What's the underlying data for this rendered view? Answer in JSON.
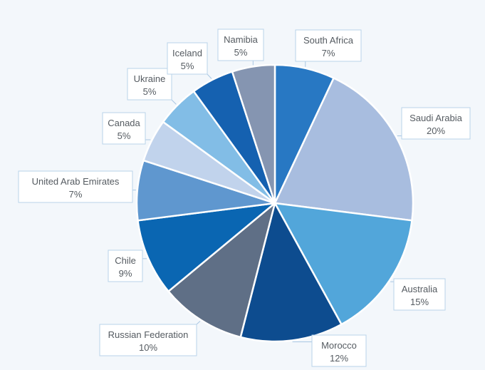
{
  "chart_data": {
    "type": "pie",
    "title": "",
    "slices": [
      {
        "label": "South Africa",
        "value": 7,
        "display": "7%",
        "color": "#2878c3"
      },
      {
        "label": "Saudi Arabia",
        "value": 20,
        "display": "20%",
        "color": "#a8bddf"
      },
      {
        "label": "Australia",
        "value": 15,
        "display": "15%",
        "color": "#52a6da"
      },
      {
        "label": "Morocco",
        "value": 12,
        "display": "12%",
        "color": "#0d4c8f"
      },
      {
        "label": "Russian Federation",
        "value": 10,
        "display": "10%",
        "color": "#5f6f86"
      },
      {
        "label": "Chile",
        "value": 9,
        "display": "9%",
        "color": "#0a66b2"
      },
      {
        "label": "United Arab Emirates",
        "value": 7,
        "display": "7%",
        "color": "#5f97cf"
      },
      {
        "label": "Canada",
        "value": 5,
        "display": "5%",
        "color": "#c1d3ec"
      },
      {
        "label": "Ukraine",
        "value": 5,
        "display": "5%",
        "color": "#82bde6"
      },
      {
        "label": "Iceland",
        "value": 5,
        "display": "5%",
        "color": "#1561b0"
      },
      {
        "label": "Namibia",
        "value": 5,
        "display": "5%",
        "color": "#8595b1"
      }
    ],
    "legend": "none (callout labels)"
  }
}
